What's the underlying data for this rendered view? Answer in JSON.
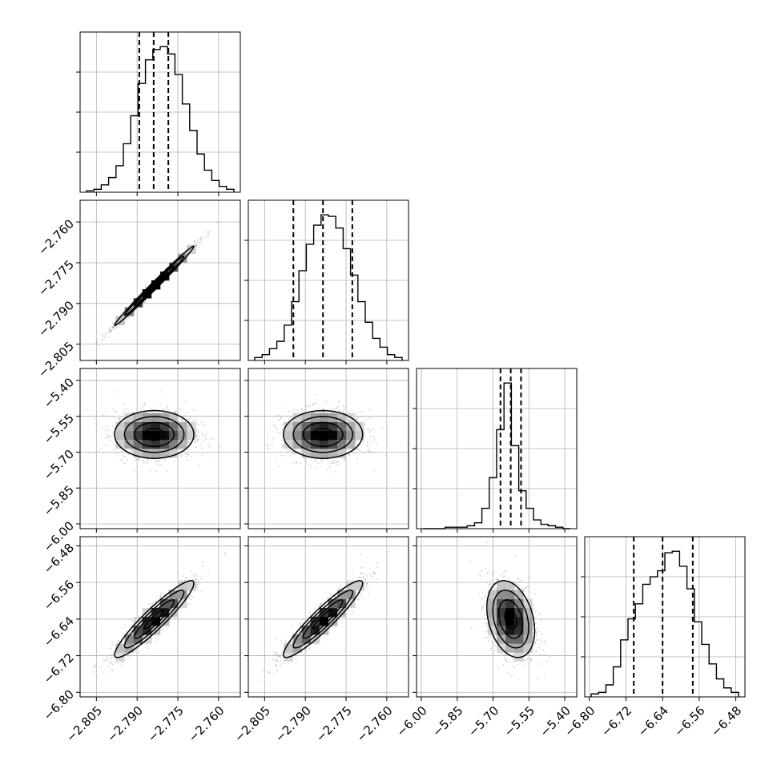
{
  "chart_data": {
    "type": "corner",
    "parameters": [
      {
        "axis_range": [
          -2.811,
          -2.752
        ],
        "ticks": [
          -2.805,
          -2.79,
          -2.775,
          -2.76
        ],
        "tick_labels": [
          "−2.805",
          "−2.790",
          "−2.775",
          "−2.760"
        ],
        "quantiles": [
          -2.7892,
          -2.7839,
          -2.7785
        ]
      },
      {
        "axis_range": [
          -2.811,
          -2.752
        ],
        "ticks": [
          -2.805,
          -2.79,
          -2.775,
          -2.76
        ],
        "tick_labels": [
          "−2.805",
          "−2.790",
          "−2.775",
          "−2.760"
        ],
        "quantiles": [
          -2.7944,
          -2.7835,
          -2.7727
        ]
      },
      {
        "axis_range": [
          -6.02,
          -5.35
        ],
        "ticks": [
          -6.0,
          -5.85,
          -5.7,
          -5.55,
          -5.4
        ],
        "tick_labels": [
          "−6.00",
          "−5.85",
          "−5.70",
          "−5.55",
          "−5.40"
        ],
        "quantiles": [
          -5.669,
          -5.626,
          -5.583
        ]
      },
      {
        "axis_range": [
          -6.81,
          -6.46
        ],
        "ticks": [
          -6.8,
          -6.72,
          -6.64,
          -6.56,
          -6.48
        ],
        "tick_labels": [
          "−6.80",
          "−6.72",
          "−6.64",
          "−6.56",
          "−6.48"
        ],
        "quantiles": [
          -6.703,
          -6.64,
          -6.574
        ]
      }
    ],
    "histograms": [
      [
        1,
        2,
        5,
        10,
        18,
        33,
        52,
        74,
        90,
        97,
        99,
        94,
        80,
        60,
        42,
        26,
        15,
        8,
        4,
        2
      ],
      [
        2,
        4,
        8,
        13,
        24,
        40,
        61,
        79,
        92,
        99,
        98,
        90,
        76,
        58,
        40,
        26,
        15,
        9,
        4,
        2
      ],
      [
        0,
        0,
        0,
        1,
        1,
        1,
        2,
        4,
        14,
        35,
        68,
        100,
        57,
        26,
        14,
        6,
        3,
        2,
        1,
        0
      ],
      [
        2,
        3,
        8,
        20,
        38,
        52,
        62,
        75,
        80,
        84,
        96,
        97,
        87,
        72,
        50,
        35,
        22,
        12,
        6,
        3
      ]
    ],
    "joint": [
      {
        "row": 1,
        "col": 0,
        "mean": [
          -2.7837,
          -2.7835
        ],
        "sd": [
          0.0073,
          0.0073
        ],
        "corr": 0.993
      },
      {
        "row": 2,
        "col": 0,
        "mean": [
          -2.7837,
          -5.626
        ],
        "sd": [
          0.0073,
          0.05
        ],
        "corr": 0.0
      },
      {
        "row": 2,
        "col": 1,
        "mean": [
          -2.7835,
          -5.626
        ],
        "sd": [
          0.0073,
          0.05
        ],
        "corr": 0.0
      },
      {
        "row": 3,
        "col": 0,
        "mean": [
          -2.7837,
          -6.64
        ],
        "sd": [
          0.0073,
          0.042
        ],
        "corr": 0.93
      },
      {
        "row": 3,
        "col": 1,
        "mean": [
          -2.7835,
          -6.64
        ],
        "sd": [
          0.0073,
          0.042
        ],
        "corr": 0.93
      },
      {
        "row": 3,
        "col": 2,
        "mean": [
          -5.626,
          -6.64
        ],
        "sd": [
          0.05,
          0.042
        ],
        "corr": -0.3
      }
    ],
    "contour_levels_sigma": [
      0.5,
      1.0,
      1.5,
      2.0
    ],
    "grid": true,
    "colors": {
      "line": "#000000",
      "grid": "#b0b0b0",
      "points": "#9a9a9a"
    }
  }
}
